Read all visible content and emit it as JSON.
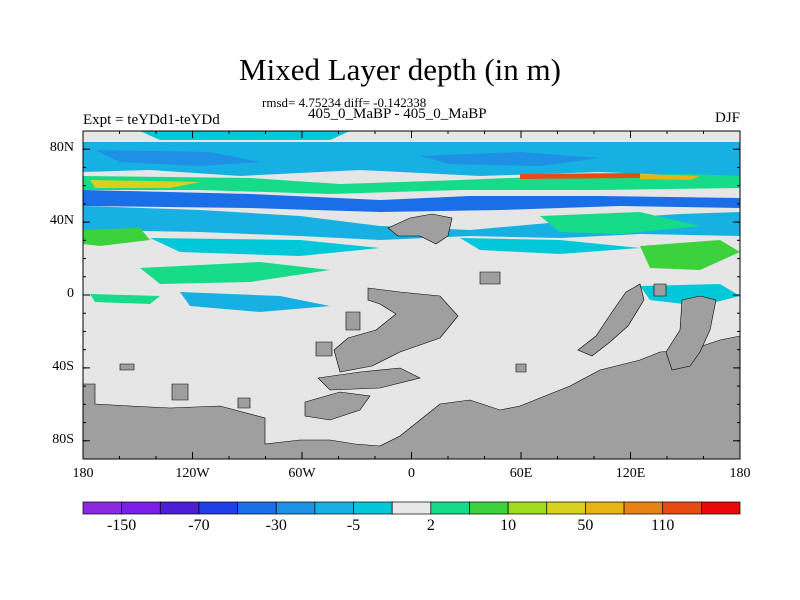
{
  "title": "Mixed Layer depth (in m)",
  "stats_line": "rmsd= 4.75234 diff= -0.142338",
  "subtitle": "405_0_MaBP - 405_0_MaBP",
  "experiment_label": "Expt = teYDd1-teYDd",
  "season_label": "DJF",
  "map": {
    "lon_range": [
      -180,
      180
    ],
    "lat_range": [
      -90,
      90
    ],
    "lat_ticks": [
      {
        "value": 80,
        "label": "80N"
      },
      {
        "value": 40,
        "label": "40N"
      },
      {
        "value": 0,
        "label": "0"
      },
      {
        "value": -40,
        "label": "40S"
      },
      {
        "value": -80,
        "label": "80S"
      }
    ],
    "lon_ticks": [
      {
        "value": -180,
        "label": "180"
      },
      {
        "value": -120,
        "label": "120W"
      },
      {
        "value": -60,
        "label": "60W"
      },
      {
        "value": 0,
        "label": "0"
      },
      {
        "value": 60,
        "label": "60E"
      },
      {
        "value": 120,
        "label": "120E"
      },
      {
        "value": 180,
        "label": "180"
      }
    ],
    "ocean_color": "#e6e6e6",
    "land_color": "#9f9f9f"
  },
  "colorbar": {
    "colors": [
      "#8a2be2",
      "#7a1ee8",
      "#4b1fd6",
      "#1f3fe8",
      "#1a6ee8",
      "#1e90e6",
      "#17b0e2",
      "#00c8d8",
      "#e8e8e8",
      "#16dc8a",
      "#3cd23c",
      "#a0dc1e",
      "#d8d21e",
      "#e8b414",
      "#e88214",
      "#e84a14",
      "#e80a0a"
    ],
    "labels": [
      {
        "after_index": 0,
        "text": "-150"
      },
      {
        "after_index": 2,
        "text": "-70"
      },
      {
        "after_index": 4,
        "text": "-30"
      },
      {
        "after_index": 6,
        "text": "-5"
      },
      {
        "after_index": 8,
        "text": "2"
      },
      {
        "after_index": 10,
        "text": "10"
      },
      {
        "after_index": 12,
        "text": "50"
      },
      {
        "after_index": 14,
        "text": "110"
      }
    ]
  }
}
